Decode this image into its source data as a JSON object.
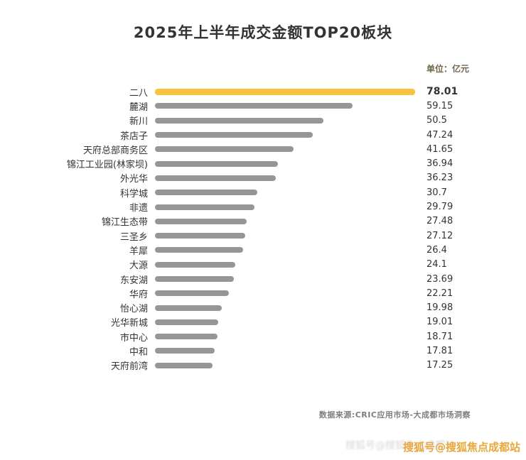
{
  "page": {
    "title": "2025年上半年成交金额TOP20板块",
    "unit_label": "单位：亿元",
    "source": "数据来源:CRIC应用市场-大成都市场洞察",
    "watermark": "搜狐号@搜狐焦点成都站"
  },
  "colors": {
    "accent": "#F8C33F",
    "bar": "#969696",
    "title_text": "#333333",
    "unit_text": "#6F6648",
    "source_text": "#7F7F7F",
    "watermark_text": "#E8A93C"
  },
  "chart_data": {
    "type": "bar",
    "orientation": "horizontal",
    "title": "2025年上半年成交金额TOP20板块",
    "unit": "亿元",
    "categories": [
      "二八",
      "麓湖",
      "新川",
      "茶店子",
      "天府总部商务区",
      "锦江工业园(林家坝)",
      "外光华",
      "科学城",
      "非遗",
      "锦江生态带",
      "三圣乡",
      "羊犀",
      "大源",
      "东安湖",
      "华府",
      "怡心湖",
      "光华新城",
      "市中心",
      "中和",
      "天府前湾"
    ],
    "values": [
      78.01,
      59.15,
      50.5,
      47.24,
      41.65,
      36.94,
      36.23,
      30.7,
      29.79,
      27.48,
      27.12,
      26.4,
      24.1,
      23.69,
      22.21,
      19.98,
      19.01,
      18.71,
      17.81,
      17.25
    ],
    "xlim": [
      0,
      78.01
    ],
    "highlight_index": 0,
    "highlight_color": "#F8C33F",
    "bar_color": "#969696",
    "value_labels": true,
    "legend": false,
    "grid": false,
    "source": "数据来源:CRIC应用市场-大成都市场洞察"
  }
}
